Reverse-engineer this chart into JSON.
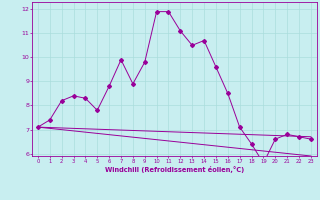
{
  "xlabel": "Windchill (Refroidissement éolien,°C)",
  "x_values": [
    0,
    1,
    2,
    3,
    4,
    5,
    6,
    7,
    8,
    9,
    10,
    11,
    12,
    13,
    14,
    15,
    16,
    17,
    18,
    19,
    20,
    21,
    22,
    23
  ],
  "y_main": [
    7.1,
    7.4,
    8.2,
    8.4,
    8.3,
    7.8,
    8.8,
    9.9,
    8.9,
    9.8,
    11.9,
    11.9,
    11.1,
    10.5,
    10.7,
    9.6,
    8.5,
    7.1,
    6.4,
    5.6,
    6.6,
    6.8,
    6.7,
    6.6
  ],
  "trend1_start": 7.1,
  "trend1_end": 6.7,
  "trend2_start": 7.1,
  "trend2_end": 5.9,
  "bg_color": "#c8eef0",
  "line_color": "#990099",
  "grid_color": "#aadddd",
  "xlim": [
    -0.5,
    23.5
  ],
  "ylim": [
    5.9,
    12.3
  ],
  "yticks": [
    6,
    7,
    8,
    9,
    10,
    11,
    12
  ],
  "xticks": [
    0,
    1,
    2,
    3,
    4,
    5,
    6,
    7,
    8,
    9,
    10,
    11,
    12,
    13,
    14,
    15,
    16,
    17,
    18,
    19,
    20,
    21,
    22,
    23
  ]
}
